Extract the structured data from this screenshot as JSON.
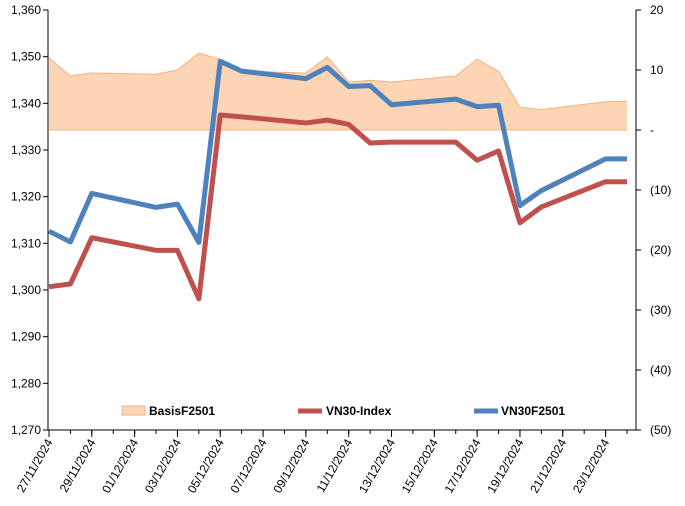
{
  "chart_data": {
    "type": "line",
    "x": [
      "27/11/2024",
      "28/11/2024",
      "29/11/2024",
      "02/12/2024",
      "03/12/2024",
      "04/12/2024",
      "05/12/2024",
      "06/12/2024",
      "09/12/2024",
      "10/12/2024",
      "11/12/2024",
      "12/12/2024",
      "13/12/2024",
      "16/12/2024",
      "17/12/2024",
      "18/12/2024",
      "19/12/2024",
      "20/12/2024",
      "23/12/2024",
      "24/12/2024"
    ],
    "x_tick_labels": [
      "27/11/2024",
      "29/11/2024",
      "01/12/2024",
      "03/12/2024",
      "05/12/2024",
      "07/12/2024",
      "09/12/2024",
      "11/12/2024",
      "13/12/2024",
      "15/12/2024",
      "17/12/2024",
      "19/12/2024",
      "21/12/2024",
      "23/12/2024"
    ],
    "y_left": {
      "min": 1270,
      "max": 1360,
      "step": 10,
      "tick_labels": [
        "1,270",
        "1,280",
        "1,290",
        "1,300",
        "1,310",
        "1,320",
        "1,330",
        "1,340",
        "1,350",
        "1,360"
      ]
    },
    "y_right": {
      "min": -50,
      "max": 20,
      "step": 10,
      "tick_labels": [
        "(50)",
        "(40)",
        "(30)",
        "(20)",
        "(10)",
        "-",
        "10",
        "20"
      ]
    },
    "legend_position": "bottom",
    "grid": false,
    "series": [
      {
        "name": "BasisF2501",
        "type": "area",
        "axis": "right",
        "color": "#f4b183",
        "fill": "#fcd5b4",
        "values": [
          12.0,
          9.0,
          9.5,
          9.3,
          10.0,
          12.8,
          11.8,
          9.8,
          9.5,
          12.2,
          8.0,
          8.3,
          8.0,
          9.0,
          11.8,
          9.8,
          3.8,
          3.4,
          4.7,
          4.8
        ]
      },
      {
        "name": "VN30-Index",
        "type": "line",
        "axis": "left",
        "color": "#c0504d",
        "values": [
          1300.7,
          1301.3,
          1311.2,
          1308.5,
          1308.5,
          1298.1,
          1337.5,
          1337.1,
          1335.8,
          1336.4,
          1335.5,
          1331.5,
          1331.7,
          1331.7,
          1327.8,
          1329.8,
          1314.4,
          1317.8,
          1323.2,
          1323.2
        ]
      },
      {
        "name": "VN30F2501",
        "type": "line",
        "axis": "left",
        "color": "#4f81bd",
        "values": [
          1312.6,
          1310.3,
          1320.7,
          1317.7,
          1318.4,
          1310.2,
          1349.0,
          1346.9,
          1345.3,
          1347.7,
          1343.6,
          1343.8,
          1339.7,
          1340.9,
          1339.3,
          1339.6,
          1318.1,
          1321.3,
          1328.1,
          1328.1
        ]
      }
    ]
  }
}
